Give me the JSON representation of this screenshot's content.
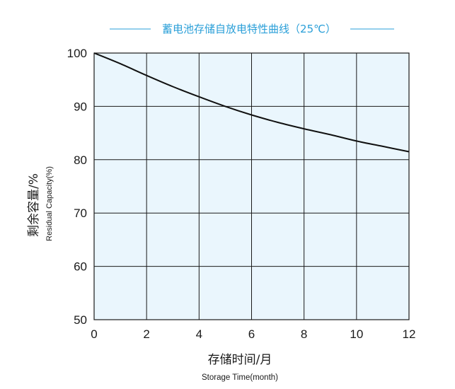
{
  "chart_data": {
    "type": "line",
    "title": "蓄电池存储自放电特性曲线（25℃）",
    "xlabel": "存储时间/月",
    "xlabel_en": "Storage Time(month)",
    "ylabel": "剩余容量/%",
    "ylabel_en": "Residual Capacity(%)",
    "xlim": [
      0,
      12
    ],
    "ylim": [
      50,
      100
    ],
    "xticks": [
      "0",
      "2",
      "4",
      "6",
      "8",
      "10",
      "12"
    ],
    "yticks": [
      "50",
      "60",
      "70",
      "80",
      "90",
      "100"
    ],
    "grid": true,
    "series": [
      {
        "x": [
          0,
          1,
          2,
          3,
          4,
          5,
          6,
          7,
          8,
          9,
          10,
          11,
          12
        ],
        "values": [
          100,
          98,
          95.8,
          93.7,
          91.8,
          90,
          88.4,
          87,
          85.8,
          84.7,
          83.5,
          82.5,
          81.5
        ]
      }
    ],
    "colors": {
      "plot_background": "#eaf6fd",
      "grid": "#1a1a1a",
      "line": "#111111",
      "title": "#2a9fd8"
    }
  }
}
